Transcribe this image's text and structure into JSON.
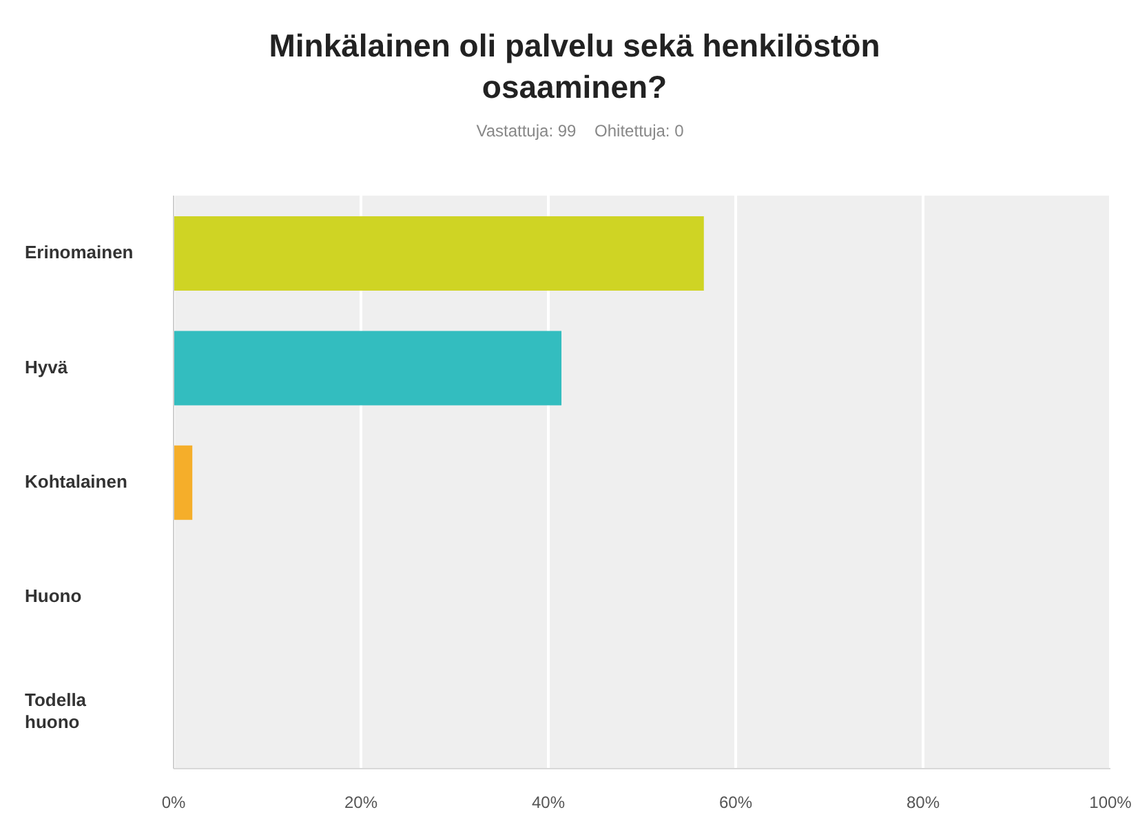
{
  "chart_data": {
    "type": "bar",
    "orientation": "horizontal",
    "title": "Minkälainen oli palvelu sekä henkilöstön osaaminen?",
    "subtitle": "Vastattuja: 99    Ohitettuja: 0",
    "categories": [
      "Erinomainen",
      "Hyvä",
      "Kohtalainen",
      "Huono",
      "Todella huono"
    ],
    "values": [
      56.6,
      41.4,
      2.0,
      0,
      0
    ],
    "colors": [
      "#cfd424",
      "#33bdbf",
      "#f5ae2a",
      "#9b59b6",
      "#e74c3c"
    ],
    "xlim": [
      0,
      100
    ],
    "xticks": [
      {
        "value": 0,
        "label": "0%"
      },
      {
        "value": 20,
        "label": "20%"
      },
      {
        "value": 40,
        "label": "40%"
      },
      {
        "value": 60,
        "label": "60%"
      },
      {
        "value": 80,
        "label": "80%"
      },
      {
        "value": 100,
        "label": "100%"
      }
    ],
    "grid": "x",
    "legend": false
  }
}
